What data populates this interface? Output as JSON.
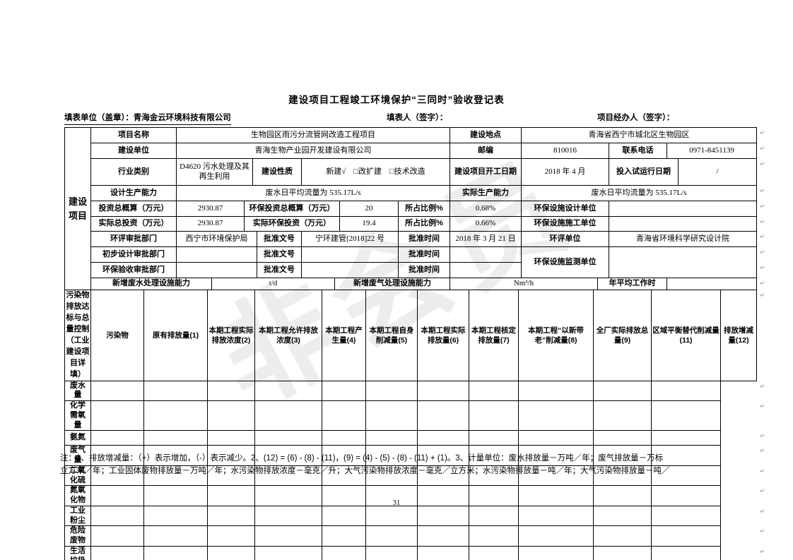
{
  "colors": {
    "text": "#000000",
    "background": "#ffffff",
    "border": "#000000",
    "watermark_gray": "#e0e0e0",
    "row_mark_gray": "#9a9a9a"
  },
  "watermark_text": "非会员",
  "title": "建设项目工程竣工环境保护“三同时”验收登记表",
  "header_line": {
    "fill_unit": "填表单位（盖章）：青海金云环境科技有限公司",
    "fill_person": "填表人（签字）：",
    "project_agent": "项目经办人（签字）："
  },
  "side_labels": {
    "top": "建设项目",
    "bottom": "污染物排放达标与总量控制（工业建设项目详填）"
  },
  "project_info": {
    "row1": {
      "label1": "项目名称",
      "value1": "生物园区雨污分流管网改造工程项目",
      "label2": "建设地点",
      "value2": "青海省西宁市城北区生物园区"
    },
    "row2": {
      "label1": "建设单位",
      "value1": "青海生物产业园开发建设有限公司",
      "label2": "邮编",
      "value2": "810016",
      "label3": "联系电话",
      "value3": "0971-8451139"
    },
    "row3": {
      "label1": "行业类别",
      "value1": "D4620 污水处理及其再生利用",
      "label2": "建设性质",
      "value2": "新建√　□改扩建　□技术改造",
      "label3": "建设项目开工日期",
      "value3": "2018 年 4 月",
      "label4": "投入试运行日期",
      "value4": "/"
    },
    "row4": {
      "label1": "设计生产能力",
      "value1": "废水日平均流量为 535.17L/s",
      "label2": "实际生产能力",
      "value2": "废水日平均流量为 535.17L/s"
    },
    "row5": {
      "label1": "投资总概算（万元）",
      "value1": "2930.87",
      "label2": "环保投资总概算（万元）",
      "value2": "20",
      "label3": "所占比例%",
      "value3": "0.68%",
      "label4": "环保设施设计单位",
      "value4": ""
    },
    "row6": {
      "label1": "实际总投资（万元）",
      "value1": "2930.87",
      "label2": "实际环保投资（万元）",
      "value2": "19.4",
      "label3": "所占比例%",
      "value3": "0.66%",
      "label4": "环保设施施工单位",
      "value4": ""
    },
    "row7": {
      "label1": "环评审批部门",
      "value1": "西宁市环境保护局",
      "label2": "批准文号",
      "value2": "宁环建管[2018]22 号",
      "label3": "批准时间",
      "value3": "2018 年 3 月 21 日",
      "label4": "环评单位",
      "value4": "青海省环境科学研究设计院"
    },
    "row8": {
      "label1": "初步设计审批部门",
      "value1": "",
      "label2": "批准文号",
      "value2": "",
      "label3": "批准时间",
      "value3": "",
      "label4": "环保设施监测单位",
      "value4": ""
    },
    "row9": {
      "label1": "环保验收审批部门",
      "value1": "",
      "label2": "批准文号",
      "value2": "",
      "label3": "批准时间",
      "value3": ""
    },
    "row10": {
      "label1": "新增废水处理设施能力",
      "value1": "t/d",
      "label2": "新增废气处理设施能力",
      "value2": "Nm³/h",
      "label3": "年平均工作时",
      "value3": ""
    }
  },
  "pollutant_table": {
    "col_headers": [
      "污染物",
      "原有排放量(1)",
      "本期工程实际排放浓度(2)",
      "本期工程允许排放浓度(3)",
      "本期工程产生量(4)",
      "本期工程自身削减量(5)",
      "本期工程实际排放量(6)",
      "本期工程核定排放量(7)",
      "本期工程“以新带老”削减量(8)",
      "全厂实际排放总量(9)",
      "区域平衡替代削减量(11)",
      "排放增减量(12)"
    ],
    "row_names": [
      "废水量",
      "化学需氧量",
      "氨氮",
      "废气量",
      "二氧化硫",
      "氮氧化物",
      "工业粉尘",
      "危险废物",
      "生活垃圾"
    ],
    "empty_cols_per_row": 11
  },
  "notes": {
    "line1": "注：1、排放增减量：（+）表示增加，（-）表示减少。2、(12) = (6) - (8) - (11)，(9) = (4) - (5) - (8) - (11) + (1)。3、计量单位：废水排放量－万吨／年；废气排放量－万标",
    "line2": "立方米／年；工业固体废物排放量－万吨／年；水污染物排放浓度－毫克／升；大气污染物排放浓度－毫克／立方米；水污染物排放量－吨／年；大气污染物排放量－吨／"
  },
  "page_number": "31",
  "row_end_mark": "↵"
}
